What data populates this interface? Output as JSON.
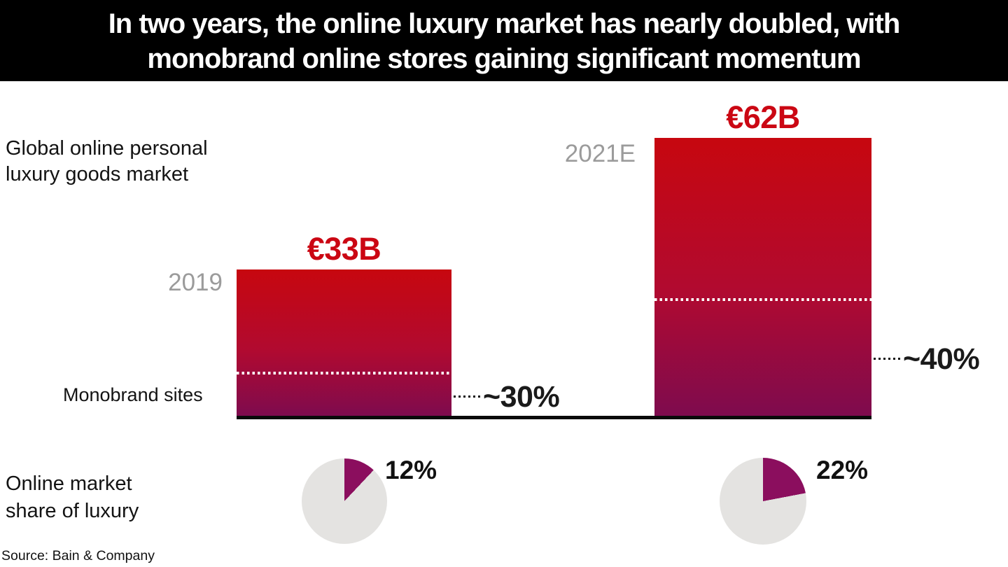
{
  "title": {
    "line1": "In two years, the online luxury market has nearly doubled, with",
    "line2": "monobrand online stores gaining significant momentum"
  },
  "labels": {
    "market_line1": "Global online personal",
    "market_line2": "luxury goods market",
    "monobrand": "Monobrand sites",
    "online_share_line1": "Online market",
    "online_share_line2": "share of luxury"
  },
  "source": "Source: Bain & Company",
  "chart_data": {
    "type": "bar",
    "title": "Global online personal luxury goods market",
    "categories": [
      "2019",
      "2021E"
    ],
    "bars": [
      {
        "year": "2019",
        "value_label": "€33B",
        "value_eur_billions": 33,
        "monobrand_share_label": "~30%",
        "monobrand_share_pct": 30
      },
      {
        "year": "2021E",
        "value_label": "€62B",
        "value_eur_billions": 62,
        "monobrand_share_label": "~40%",
        "monobrand_share_pct": 40
      }
    ],
    "pies": [
      {
        "year": "2019",
        "label": "12%",
        "value_pct": 12
      },
      {
        "year": "2021E",
        "label": "22%",
        "value_pct": 22
      }
    ],
    "pie_series_label": "Online market share of luxury",
    "annotation_label": "Monobrand sites",
    "layout": {
      "legend": "none",
      "grid": false,
      "value_labels_position": "above bars",
      "pie_start_angle_deg": 0,
      "pie_direction": "clockwise"
    },
    "colors": {
      "bar_gradient_top": "#c7070f",
      "bar_gradient_bottom": "#7e0b4e",
      "value_label_red": "#cb0713",
      "year_gray": "#9b9b9b",
      "banner_bg": "#000000",
      "banner_text": "#ffffff",
      "pie_base": "#e4e3e1",
      "pie_wedge": "#8b0e5e",
      "text_black": "#131313"
    }
  }
}
